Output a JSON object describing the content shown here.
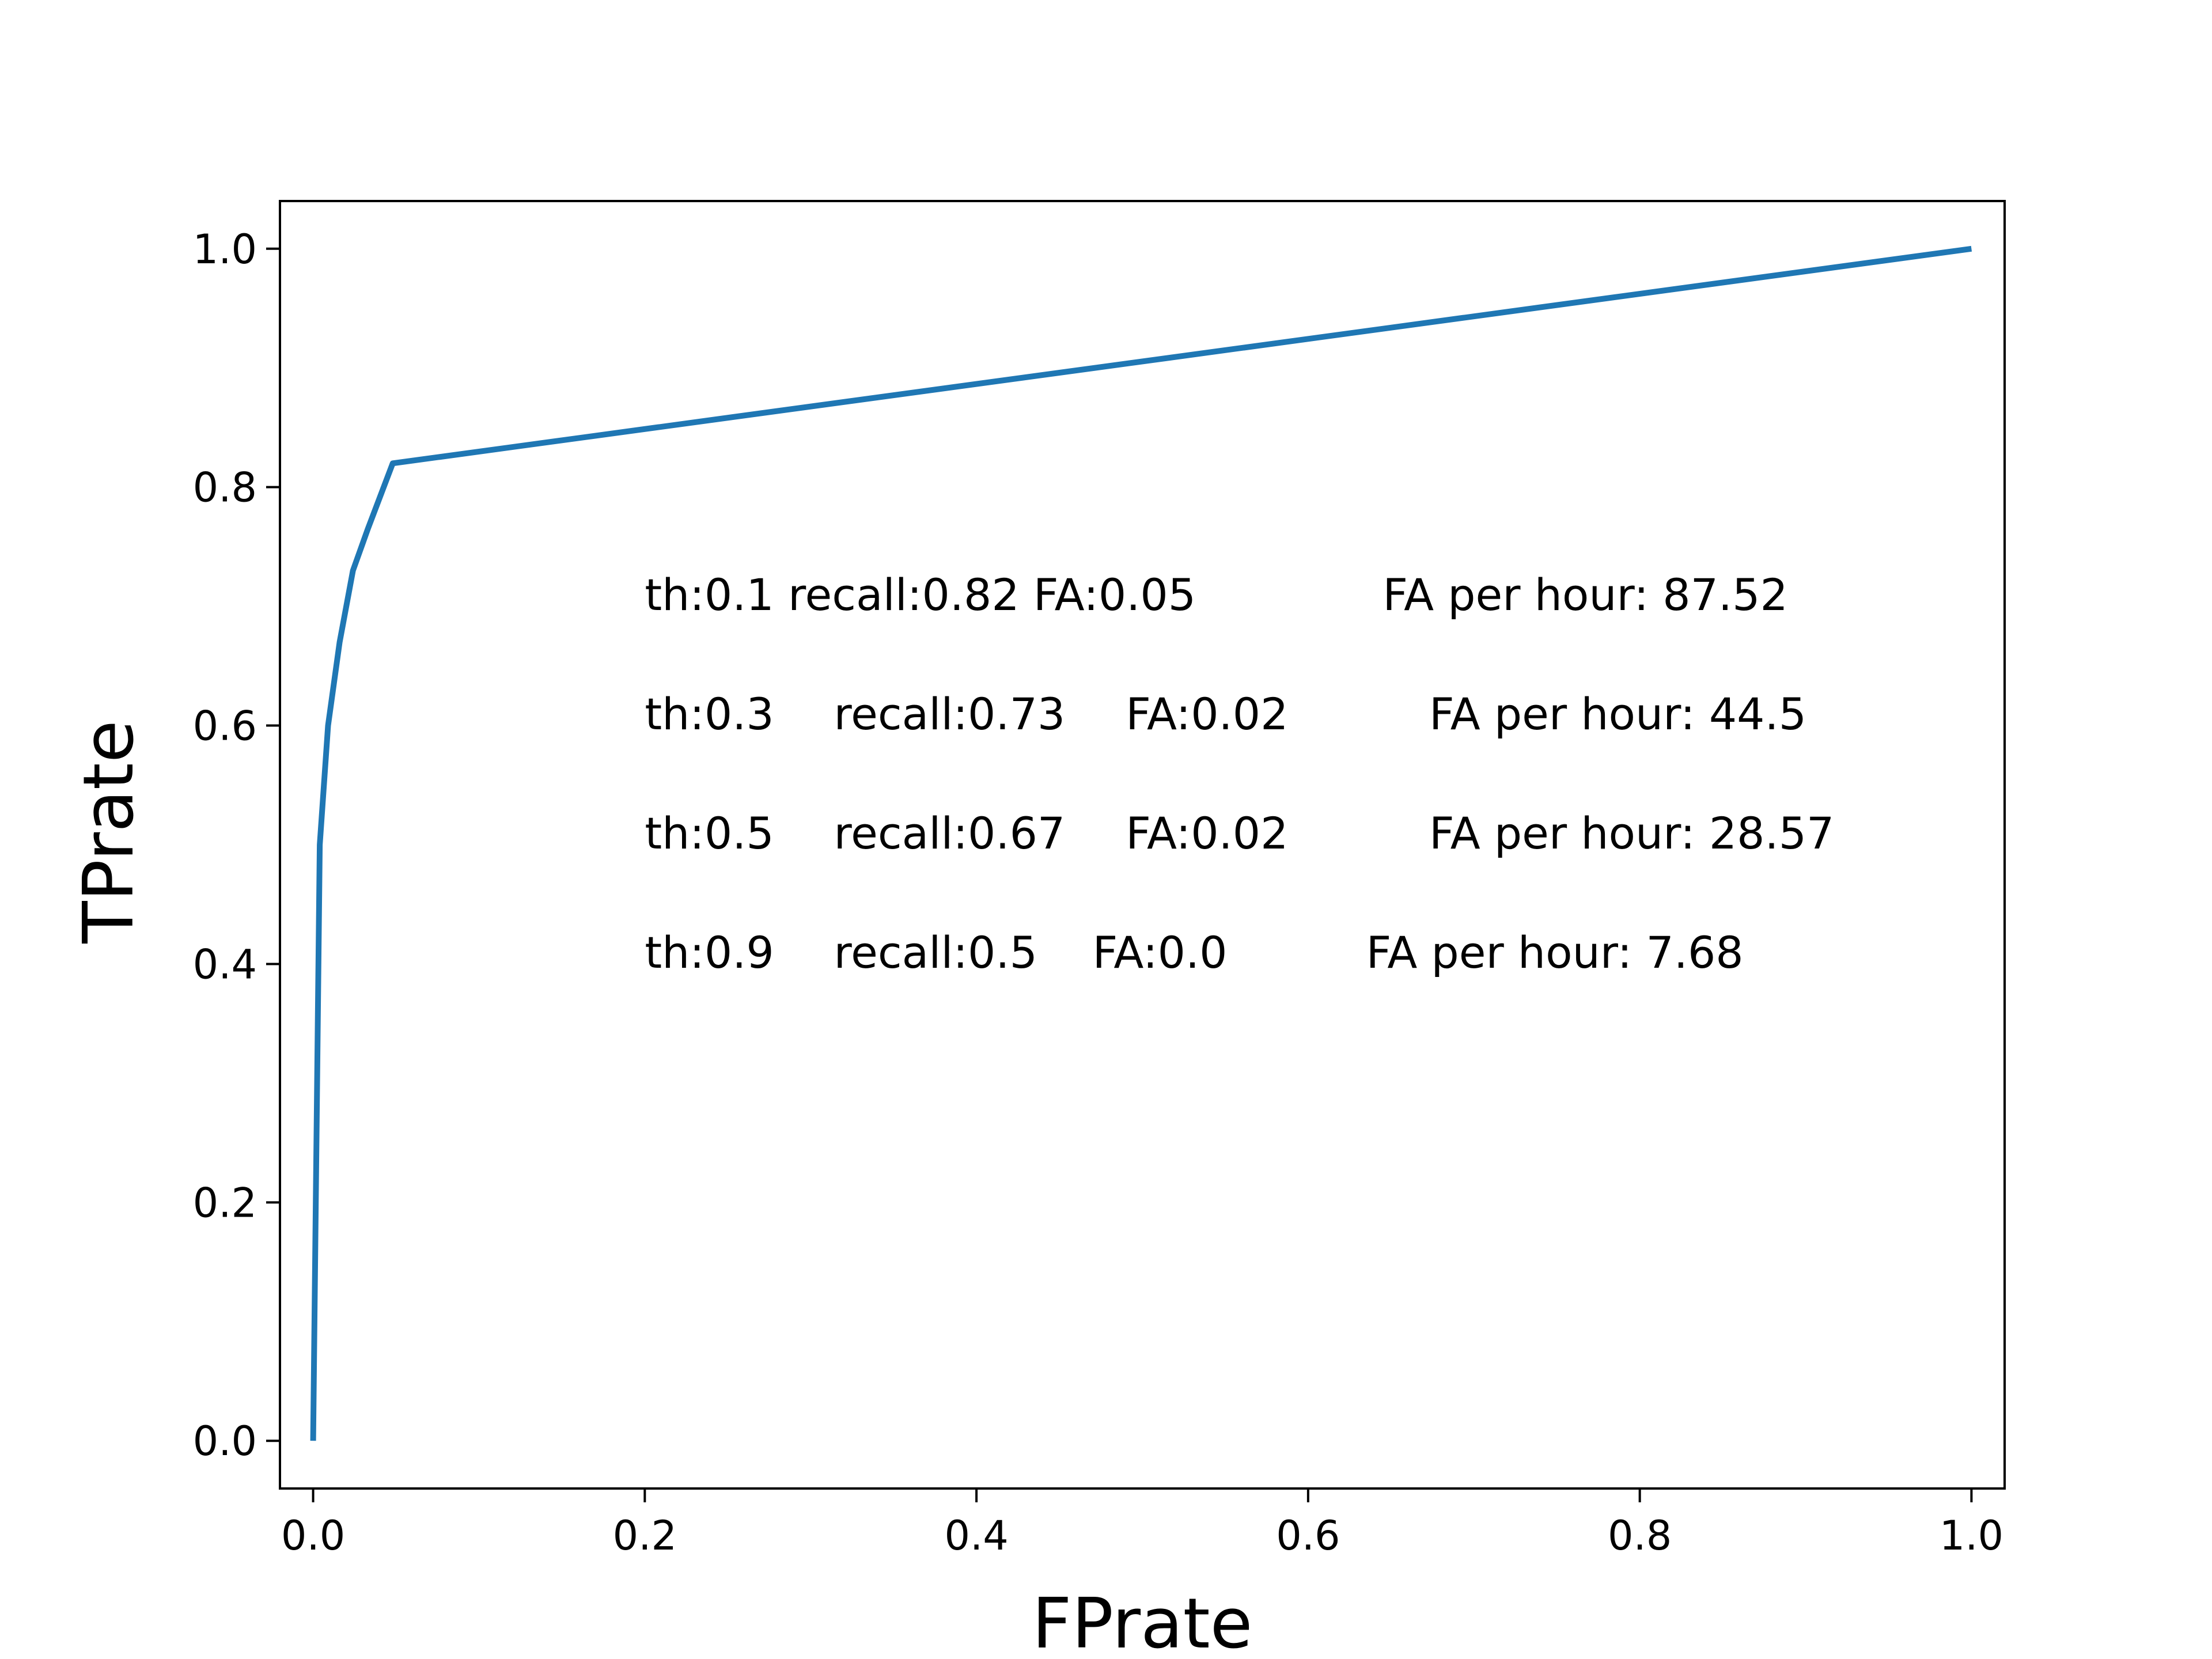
{
  "chart_data": {
    "type": "line",
    "title": "",
    "xlabel": "FPrate",
    "ylabel": "TPrate",
    "xlim": [
      -0.02,
      1.02
    ],
    "ylim": [
      -0.04,
      1.04
    ],
    "grid": false,
    "x_ticks": [
      0.0,
      0.2,
      0.4,
      0.6,
      0.8,
      1.0
    ],
    "x_tick_labels": [
      "0.0",
      "0.2",
      "0.4",
      "0.6",
      "0.8",
      "1.0"
    ],
    "y_ticks": [
      0.0,
      0.2,
      0.4,
      0.6,
      0.8,
      1.0
    ],
    "y_tick_labels": [
      "0.0",
      "0.2",
      "0.4",
      "0.6",
      "0.8",
      "1.0"
    ],
    "series": [
      {
        "color": "#1f77b4",
        "x": [
          0.0,
          0.004,
          0.009,
          0.016,
          0.024,
          0.033,
          0.048,
          1.0
        ],
        "y": [
          0.0,
          0.5,
          0.6,
          0.67,
          0.73,
          0.765,
          0.82,
          1.0
        ]
      }
    ],
    "annotations": [
      {
        "x": 0.2,
        "y": 0.71,
        "parts": [
          {
            "text": "th:0.1 recall:0.82 FA:0.05",
            "dx": 0
          },
          {
            "text": "FA per hour: 87.52",
            "dx": 0.445
          }
        ]
      },
      {
        "x": 0.2,
        "y": 0.61,
        "parts": [
          {
            "text": "th:0.3",
            "dx": 0
          },
          {
            "text": "recall:0.73",
            "dx": 0.114
          },
          {
            "text": "FA:0.02",
            "dx": 0.29
          },
          {
            "text": "FA per hour: 44.5",
            "dx": 0.473
          }
        ]
      },
      {
        "x": 0.2,
        "y": 0.51,
        "parts": [
          {
            "text": "th:0.5",
            "dx": 0
          },
          {
            "text": "recall:0.67",
            "dx": 0.114
          },
          {
            "text": "FA:0.02",
            "dx": 0.29
          },
          {
            "text": "FA per hour: 28.57",
            "dx": 0.473
          }
        ]
      },
      {
        "x": 0.2,
        "y": 0.41,
        "parts": [
          {
            "text": "th:0.9",
            "dx": 0
          },
          {
            "text": "recall:0.5",
            "dx": 0.114
          },
          {
            "text": "FA:0.0",
            "dx": 0.27
          },
          {
            "text": "FA per hour: 7.68",
            "dx": 0.435
          }
        ]
      }
    ]
  }
}
